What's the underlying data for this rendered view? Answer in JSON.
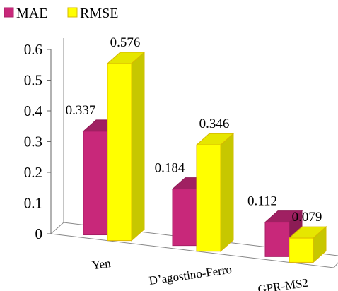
{
  "chart_data": {
    "type": "bar",
    "categories": [
      "Yen",
      "D’agostino-Ferro",
      "GPR-MS2"
    ],
    "series": [
      {
        "name": "MAE",
        "values": [
          0.337,
          0.184,
          0.112
        ],
        "labels": [
          "0.337",
          "0.184",
          "0.112"
        ],
        "color": "#c8287a"
      },
      {
        "name": "RMSE",
        "values": [
          0.576,
          0.346,
          0.079
        ],
        "labels": [
          "0.576",
          "0.346",
          "0.079"
        ],
        "color": "#ffff00"
      }
    ],
    "yticks": [
      "0",
      "0.1",
      "0.2",
      "0.3",
      "0.4",
      "0.5",
      "0.6"
    ],
    "ylim": [
      0,
      0.6
    ],
    "grid": false,
    "legend_position": "top-left",
    "title": "",
    "xlabel": "",
    "ylabel": ""
  }
}
